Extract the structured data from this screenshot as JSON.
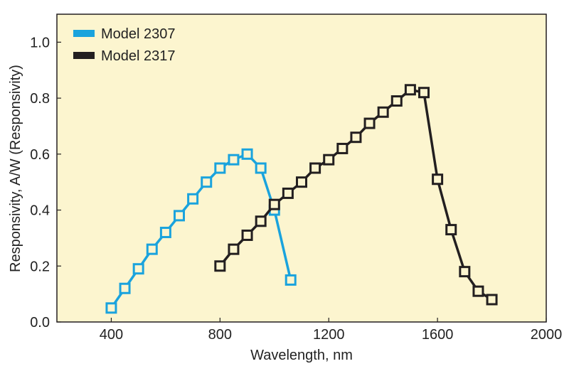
{
  "chart_data": {
    "type": "line",
    "title": "",
    "xlabel": "Wavelength, nm",
    "ylabel": "Responsivity, A/W (Responsivity)",
    "xlim": [
      200,
      2000
    ],
    "ylim": [
      0.0,
      1.1
    ],
    "xticks": [
      400,
      800,
      1200,
      1600,
      2000
    ],
    "xtick_labels": [
      "400",
      "800",
      "1200",
      "1600",
      "2000"
    ],
    "yticks": [
      0.0,
      0.2,
      0.4,
      0.6,
      0.8,
      1.0
    ],
    "ytick_labels": [
      "0.0",
      "0.2",
      "0.4",
      "0.6",
      "0.8",
      "1.0"
    ],
    "grid": false,
    "legend_position": "top-left",
    "plot_background": "#fcf5cf",
    "series": [
      {
        "name": "Model 2307",
        "color": "#1aa3dd",
        "marker": "hollow-square",
        "x": [
          400,
          450,
          500,
          550,
          600,
          650,
          700,
          750,
          800,
          850,
          900,
          950,
          1000,
          1060
        ],
        "y": [
          0.05,
          0.12,
          0.19,
          0.26,
          0.32,
          0.38,
          0.44,
          0.5,
          0.55,
          0.58,
          0.6,
          0.55,
          0.4,
          0.15
        ]
      },
      {
        "name": "Model 2317",
        "color": "#231f20",
        "marker": "hollow-square",
        "x": [
          800,
          850,
          900,
          950,
          1000,
          1050,
          1100,
          1150,
          1200,
          1250,
          1300,
          1350,
          1400,
          1450,
          1500,
          1550,
          1600,
          1650,
          1700,
          1750,
          1800
        ],
        "y": [
          0.2,
          0.26,
          0.31,
          0.36,
          0.42,
          0.46,
          0.5,
          0.55,
          0.58,
          0.62,
          0.66,
          0.71,
          0.75,
          0.79,
          0.83,
          0.82,
          0.51,
          0.33,
          0.18,
          0.11,
          0.08
        ]
      }
    ]
  }
}
